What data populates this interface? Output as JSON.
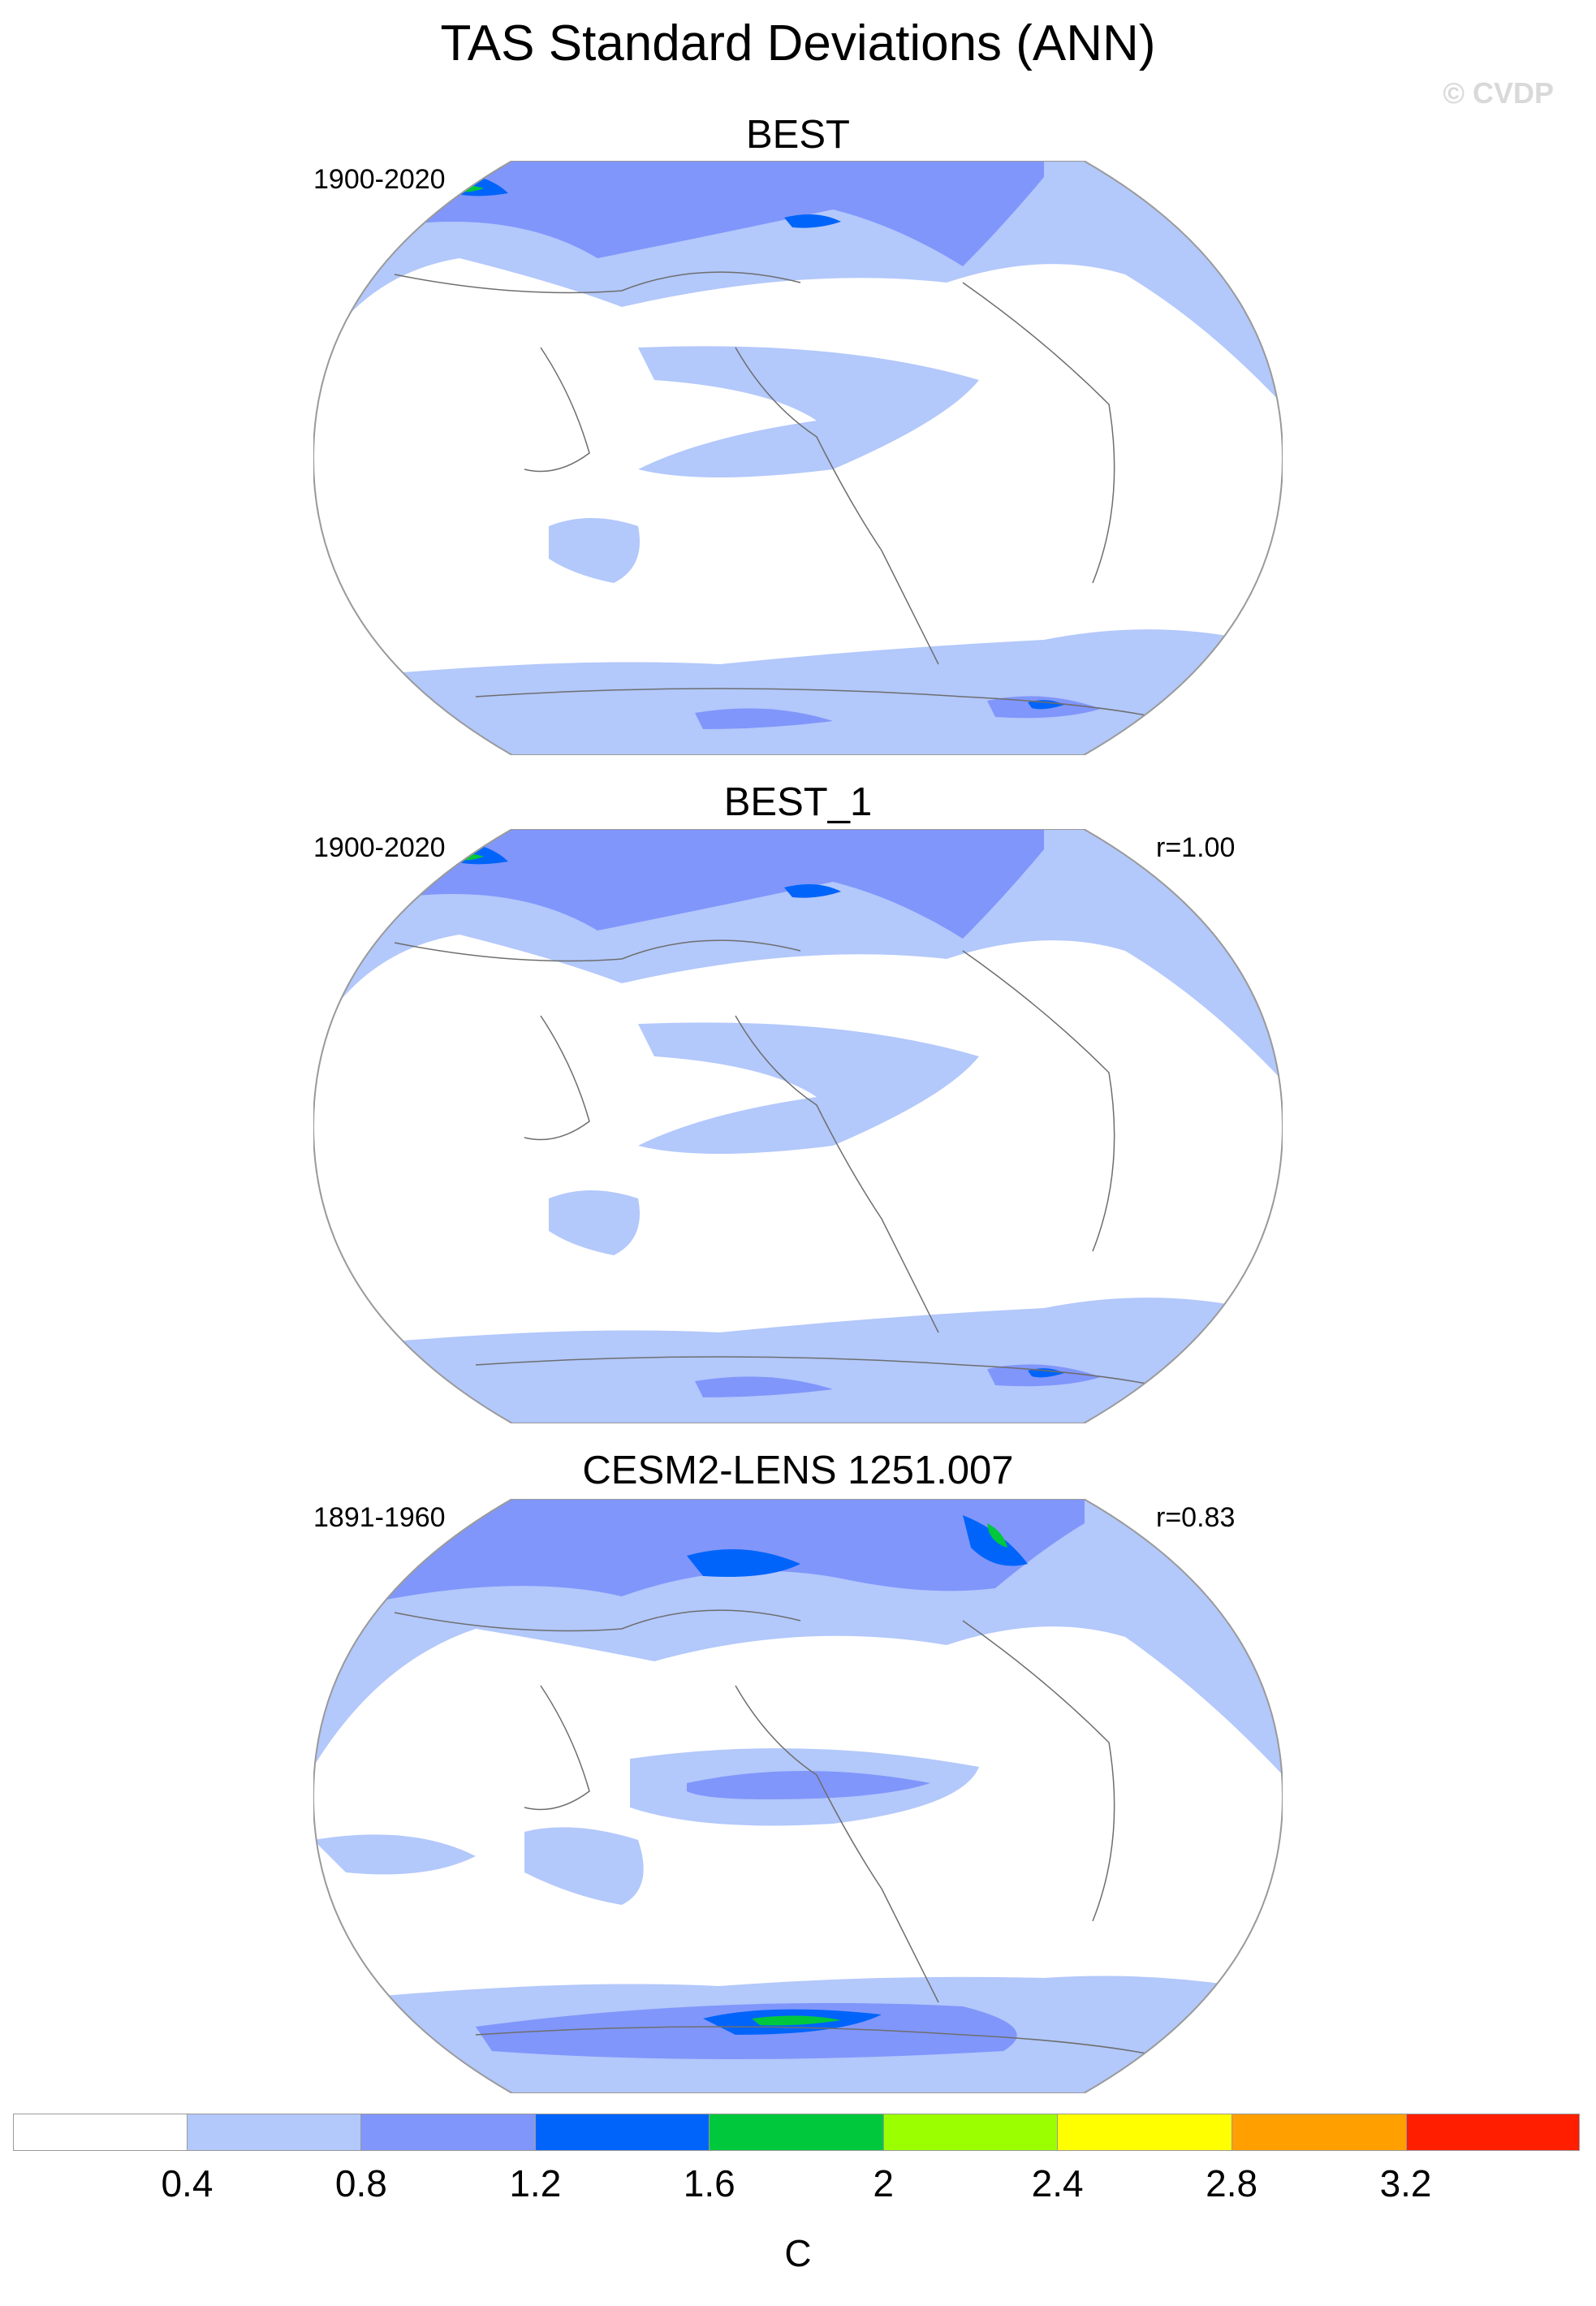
{
  "title": "TAS Standard Deviations (ANN)",
  "copyright": "© CVDP",
  "palette": {
    "land_outline": "#6e6e6e",
    "map_border": "#9a9a9a",
    "level_colors": [
      "#ffffff",
      "#b3c8fb",
      "#8096fb",
      "#0064fa",
      "#00c83c",
      "#9bff00",
      "#ffff00",
      "#ffa000",
      "#ff1e00"
    ]
  },
  "panels": [
    {
      "title": "BEST",
      "period": "1900-2020",
      "correlation": ""
    },
    {
      "title": "BEST_1",
      "period": "1900-2020",
      "correlation": "r=1.00"
    },
    {
      "title": "CESM2-LENS 1251.007",
      "period": "1891-1960",
      "correlation": "r=0.83"
    }
  ],
  "colorbar": {
    "ticks": [
      "0.4",
      "0.8",
      "1.2",
      "1.6",
      "2",
      "2.4",
      "2.8",
      "3.2"
    ],
    "units": "C"
  }
}
